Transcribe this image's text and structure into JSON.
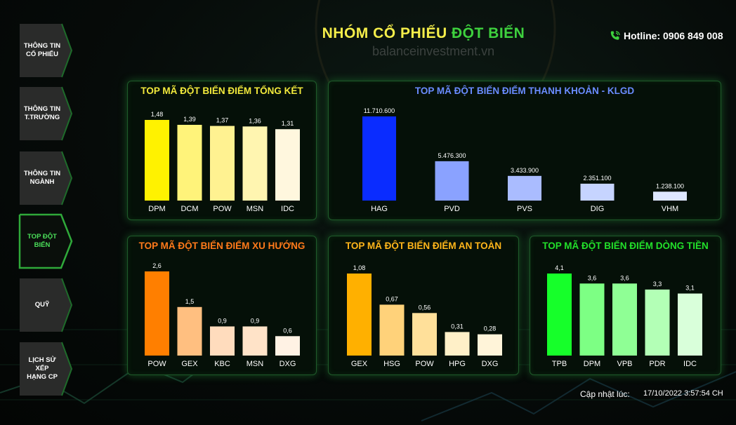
{
  "header": {
    "title_part1": "NHÓM CỔ PHIẾU",
    "title_part2": "ĐỘT BIẾN",
    "watermark": "balanceinvestment.vn",
    "hotline": "Hotline: 0906 849 008",
    "hotline_icon": "phone-icon"
  },
  "sidebar": {
    "items": [
      {
        "label": "THÔNG TIN\nCỔ PHIẾU",
        "active": false
      },
      {
        "label": "THÔNG TIN\nT.TRƯỜNG",
        "active": false
      },
      {
        "label": "THÔNG TIN\nNGÀNH",
        "active": false
      },
      {
        "label": "TOP ĐỘT\nBIẾN",
        "active": true
      },
      {
        "label": "QUỸ",
        "active": false
      },
      {
        "label": "LỊCH SỬ XẾP\nHẠNG CP",
        "active": false
      }
    ]
  },
  "footer": {
    "updated_label": "Cập nhật lúc:",
    "updated_value": "17/10/2022 3:57:54 CH"
  },
  "colors": {
    "accent_green": "#3ed13e",
    "accent_yellow": "#f5ee4a",
    "panel_border": "#1f5a2a"
  },
  "chart_data": [
    {
      "type": "bar",
      "title": "TOP MÃ ĐỘT BIẾN ĐIỂM TỔNG KẾT",
      "title_color": "#f2ea3c",
      "categories": [
        "DPM",
        "DCM",
        "POW",
        "MSN",
        "IDC"
      ],
      "values": [
        1.48,
        1.39,
        1.37,
        1.36,
        1.31
      ],
      "labels": [
        "1,48",
        "1,39",
        "1,37",
        "1,36",
        "1,31"
      ],
      "colors": [
        "#fff200",
        "#fff37a",
        "#fff291",
        "#fff5b0",
        "#fff7de"
      ]
    },
    {
      "type": "bar",
      "title": "TOP MÃ ĐỘT BIẾN ĐIỂM THANH KHOẢN - KLGD",
      "title_color": "#6a8cff",
      "categories": [
        "HAG",
        "PVD",
        "PVS",
        "DIG",
        "VHM"
      ],
      "values": [
        11710600,
        5476300,
        3433900,
        2351100,
        1238100
      ],
      "labels": [
        "11.710.600",
        "5.476.300",
        "3.433.900",
        "2.351.100",
        "1.238.100"
      ],
      "colors": [
        "#0a2cff",
        "#8aa2ff",
        "#aabcff",
        "#c6d4ff",
        "#dee7ff"
      ]
    },
    {
      "type": "bar",
      "title": "TOP MÃ ĐỘT BIẾN ĐIỂM XU HƯỚNG",
      "title_color": "#ff7a1a",
      "categories": [
        "POW",
        "GEX",
        "KBC",
        "MSN",
        "DXG"
      ],
      "values": [
        2.6,
        1.5,
        0.9,
        0.9,
        0.6
      ],
      "labels": [
        "2,6",
        "1,5",
        "0,9",
        "0,9",
        "0,6"
      ],
      "colors": [
        "#ff7f00",
        "#ffbf80",
        "#ffdcbd",
        "#ffe3c8",
        "#fff2e4"
      ]
    },
    {
      "type": "bar",
      "title": "TOP MÃ ĐỘT BIẾN ĐIỂM AN TOÀN",
      "title_color": "#ffb61a",
      "categories": [
        "GEX",
        "HSG",
        "POW",
        "HPG",
        "DXG"
      ],
      "values": [
        1.08,
        0.67,
        0.56,
        0.31,
        0.28
      ],
      "labels": [
        "1,08",
        "0,67",
        "0,56",
        "0,31",
        "0,28"
      ],
      "colors": [
        "#ffb000",
        "#ffd27a",
        "#ffe09a",
        "#fff0c8",
        "#fff4d9"
      ]
    },
    {
      "type": "bar",
      "title": "TOP MÃ ĐỘT BIẾN ĐIỂM DÒNG TIỀN",
      "title_color": "#22e02a",
      "categories": [
        "TPB",
        "DPM",
        "VPB",
        "PDR",
        "IDC"
      ],
      "values": [
        4.1,
        3.6,
        3.6,
        3.3,
        3.1
      ],
      "labels": [
        "4,1",
        "3,6",
        "3,6",
        "3,3",
        "3,1"
      ],
      "colors": [
        "#16ff2a",
        "#7dff84",
        "#8fff95",
        "#b3ffb6",
        "#d9ffda"
      ]
    }
  ]
}
